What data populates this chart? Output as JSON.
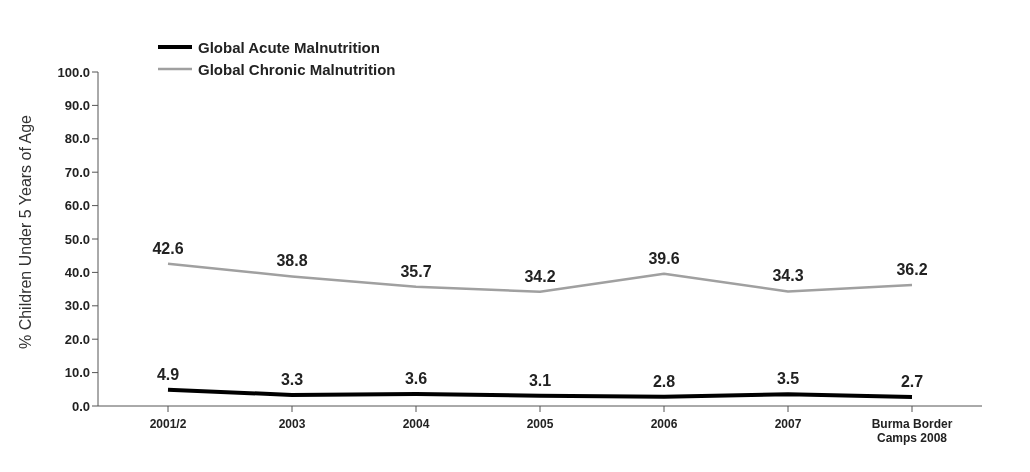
{
  "chart_data": {
    "type": "line",
    "ylabel": "% Children Under 5 Years of Age",
    "categories": [
      "2001/2",
      "2003",
      "2004",
      "2005",
      "2006",
      "2007",
      "Burma Border Camps 2008"
    ],
    "series": [
      {
        "name": "Global Acute Malnutrition",
        "color": "#000000",
        "values": [
          4.9,
          3.3,
          3.6,
          3.1,
          2.8,
          3.5,
          2.7
        ]
      },
      {
        "name": "Global Chronic Malnutrition",
        "color": "#a0a0a0",
        "values": [
          42.6,
          38.8,
          35.7,
          34.2,
          39.6,
          34.3,
          36.2
        ]
      }
    ],
    "ylim": [
      0,
      100
    ],
    "yticks": [
      {
        "value": 0,
        "label": "0.0"
      },
      {
        "value": 10,
        "label": "10.0"
      },
      {
        "value": 20,
        "label": "20.0"
      },
      {
        "value": 30,
        "label": "30.0"
      },
      {
        "value": 40,
        "label": "40.0"
      },
      {
        "value": 50,
        "label": "50.0"
      },
      {
        "value": 60,
        "label": "60.0"
      },
      {
        "value": 70,
        "label": "70.0"
      },
      {
        "value": 80,
        "label": "80.0"
      },
      {
        "value": 90,
        "label": "90.0"
      },
      {
        "value": 100,
        "label": "100.0"
      }
    ],
    "grid": false,
    "legend": "top left",
    "marker": "none",
    "line_style": "solid",
    "data_labels": true
  }
}
